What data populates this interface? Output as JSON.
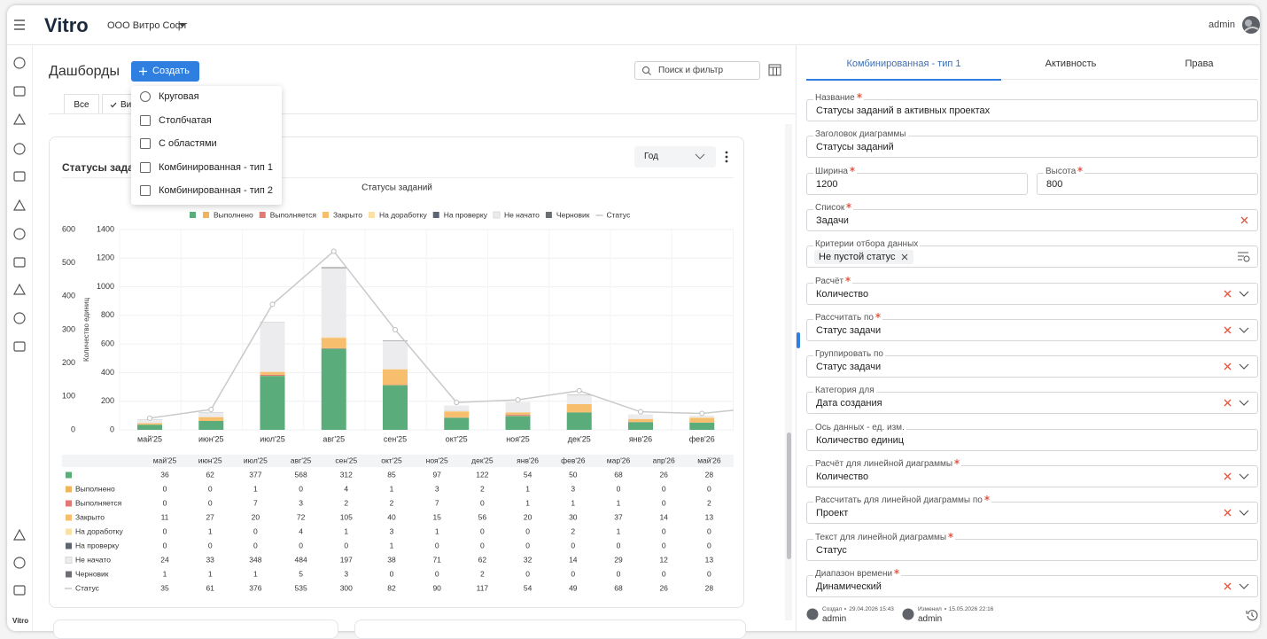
{
  "topbar": {
    "logo": "Vitro",
    "org": "ООО Витро Софт",
    "user": "admin"
  },
  "sidebar": {
    "footer": "Vitro"
  },
  "page": {
    "title": "Дашборды",
    "create": "Создать",
    "search": "Поиск и фильтр",
    "tabs": [
      "Все",
      "Ви"
    ]
  },
  "menu": [
    "Круговая",
    "Столбчатая",
    "С областями",
    "Комбинированная - тип 1",
    "Комбинированная - тип 2"
  ],
  "card": {
    "title": "Статусы заданий",
    "period": "Год"
  },
  "chart_data": {
    "type": "bar",
    "title": "Статусы заданий",
    "ylabel": "Количество единиц",
    "categories": [
      "май'25",
      "июн'25",
      "июл'25",
      "авг'25",
      "сен'25",
      "окт'25",
      "ноя'25",
      "дек'25",
      "янв'26",
      "фев'26",
      "мар'26",
      "апр'26",
      "май'26"
    ],
    "series": [
      {
        "color": "#5aad7b",
        "values": [
          36,
          62,
          377,
          568,
          312,
          85,
          97,
          122,
          54,
          50,
          68,
          26,
          28
        ]
      },
      {
        "name": "Выполнено",
        "color": "#f0b35e",
        "values": [
          0,
          0,
          1,
          0,
          4,
          1,
          3,
          2,
          1,
          3,
          0,
          0,
          0
        ]
      },
      {
        "name": "Выполняется",
        "color": "#e07a72",
        "values": [
          0,
          0,
          7,
          3,
          2,
          2,
          7,
          0,
          1,
          1,
          1,
          0,
          2
        ]
      },
      {
        "name": "Закрыто",
        "color": "#f7be6d",
        "values": [
          11,
          27,
          20,
          72,
          105,
          40,
          15,
          56,
          20,
          30,
          37,
          14,
          13
        ]
      },
      {
        "name": "На доработку",
        "color": "#fbe0a6",
        "values": [
          0,
          1,
          0,
          4,
          1,
          3,
          1,
          0,
          0,
          2,
          1,
          0,
          0
        ]
      },
      {
        "name": "На проверку",
        "color": "#5b6672",
        "values": [
          0,
          0,
          0,
          0,
          0,
          1,
          0,
          0,
          0,
          0,
          0,
          0,
          0
        ]
      },
      {
        "name": "Не начато",
        "color": "#ececee",
        "values": [
          24,
          33,
          348,
          484,
          197,
          38,
          71,
          62,
          32,
          14,
          29,
          12,
          13
        ]
      },
      {
        "name": "Черновик",
        "color": "#6b6e72",
        "values": [
          1,
          1,
          1,
          5,
          3,
          0,
          0,
          2,
          0,
          0,
          0,
          0,
          0
        ]
      },
      {
        "name": "Статус",
        "color": "#c9c9c9",
        "type": "line",
        "axis": "y2",
        "values": [
          35,
          61,
          376,
          535,
          300,
          82,
          90,
          117,
          54,
          49,
          68,
          26,
          28
        ]
      }
    ],
    "ylim": [
      0,
      1400
    ],
    "yticks": [
      0,
      200,
      400,
      600,
      800,
      1000,
      1200,
      1400
    ],
    "y2lim": [
      0,
      600
    ],
    "y2ticks": [
      0,
      100,
      200,
      300,
      400,
      500,
      600
    ],
    "grid": true,
    "legend": "top"
  },
  "form": {
    "tabs": [
      "Комбинированная - тип 1",
      "Активность",
      "Права"
    ],
    "rows": [
      [
        {
          "label": "Название",
          "required": true,
          "value": "Статусы заданий в активных проектах"
        }
      ],
      [
        {
          "label": "Заголовок диаграммы",
          "value": "Статусы заданий"
        }
      ],
      [
        {
          "label": "Ширина",
          "required": true,
          "value": "1200"
        },
        {
          "label": "Высота",
          "required": true,
          "value": "800"
        }
      ],
      [
        {
          "label": "Список",
          "required": true,
          "value": "Задачи",
          "clearable": true
        }
      ],
      [
        {
          "label": "Критерии отбора данных",
          "chips": [
            "Не пустой статус"
          ],
          "filter": true
        }
      ],
      [
        {
          "label": "Расчёт",
          "required": true,
          "value": "Количество",
          "clearable": true,
          "select": true
        }
      ],
      [
        {
          "label": "Рассчитать по",
          "required": true,
          "value": "Статус задачи",
          "clearable": true,
          "select": true
        }
      ],
      [
        {
          "label": "Группировать по",
          "value": "Статус задачи",
          "clearable": true,
          "select": true
        }
      ],
      [
        {
          "label": "Категория для",
          "value": "Дата создания",
          "clearable": true,
          "select": true
        }
      ],
      [
        {
          "label": "Ось данных - ед. изм.",
          "value": "Количество единиц"
        }
      ],
      [
        {
          "label": "Расчёт для линейной диаграммы",
          "required": true,
          "value": "Количество",
          "clearable": true,
          "select": true
        }
      ],
      [
        {
          "label": "Рассчитать для линейной диаграммы по",
          "required": true,
          "value": "Проект",
          "clearable": true,
          "select": true
        }
      ],
      [
        {
          "label": "Текст для линейной диаграммы",
          "required": true,
          "value": "Статус"
        }
      ],
      [
        {
          "label": "Диапазон времени",
          "required": true,
          "value": "Динамический",
          "clearable": true,
          "select": true
        }
      ]
    ],
    "meta": [
      {
        "caption": "Создал",
        "date": "29.04.2026 15:43",
        "user": "admin"
      },
      {
        "caption": "Изменил",
        "date": "15.05.2026 22:16",
        "user": "admin"
      }
    ]
  }
}
